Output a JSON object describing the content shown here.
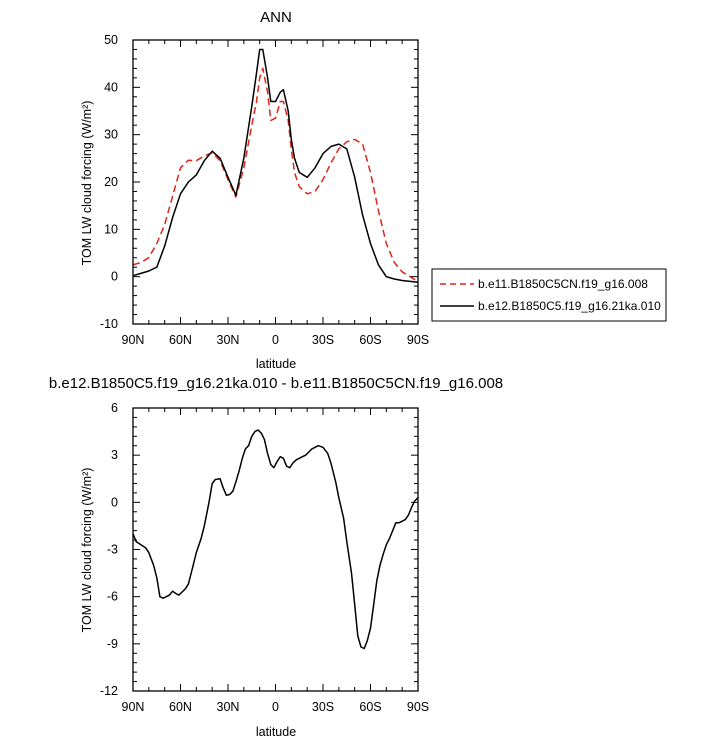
{
  "chart_data": [
    {
      "type": "line",
      "title": "ANN",
      "xlabel": "latitude",
      "ylabel": "TOM LW cloud forcing (W/m²)",
      "xlim": [
        90,
        -90
      ],
      "ylim": [
        -10,
        50
      ],
      "x_ticks": [
        90,
        60,
        30,
        0,
        -30,
        -60,
        -90
      ],
      "x_tick_labels": [
        "90N",
        "60N",
        "30N",
        "0",
        "30S",
        "60S",
        "90S"
      ],
      "y_ticks": [
        -10,
        0,
        10,
        20,
        30,
        40,
        50
      ],
      "y_tick_labels": [
        "-10",
        "0",
        "10",
        "20",
        "30",
        "40",
        "50"
      ],
      "legend_position": "right",
      "series": [
        {
          "name": "b.e11.B1850C5CN.f19_g16.008",
          "color": "#e0241b",
          "dash": "dashed",
          "x": [
            90,
            85,
            80,
            75,
            70,
            65,
            60,
            55,
            50,
            45,
            40,
            35,
            30,
            25,
            20,
            15,
            12,
            10,
            8,
            5,
            3,
            0,
            -3,
            -5,
            -8,
            -10,
            -12,
            -15,
            -20,
            -25,
            -30,
            -35,
            -40,
            -45,
            -50,
            -55,
            -60,
            -65,
            -70,
            -75,
            -80,
            -85,
            -90
          ],
          "y": [
            2.5,
            3,
            4,
            7,
            11,
            17,
            23,
            24.6,
            24.5,
            25.5,
            26.2,
            24.5,
            20.5,
            16.8,
            23,
            32,
            37,
            42,
            44,
            39,
            33,
            33.5,
            37,
            37,
            33,
            27,
            22,
            19,
            17.5,
            18,
            20.5,
            24,
            27,
            28.5,
            29,
            28,
            22,
            14,
            7,
            3,
            1,
            0,
            -1
          ]
        },
        {
          "name": "b.e12.B1850C5.f19_g16.21ka.010",
          "color": "#000000",
          "dash": "solid",
          "x": [
            90,
            85,
            80,
            75,
            70,
            65,
            60,
            55,
            50,
            45,
            40,
            35,
            30,
            25,
            20,
            15,
            12,
            10,
            8,
            5,
            3,
            0,
            -3,
            -5,
            -8,
            -10,
            -12,
            -15,
            -20,
            -25,
            -30,
            -35,
            -40,
            -45,
            -50,
            -55,
            -60,
            -65,
            -70,
            -75,
            -80,
            -85,
            -90
          ],
          "y": [
            0.2,
            0.7,
            1.2,
            2,
            6.5,
            12.5,
            17.5,
            20,
            21.5,
            24.5,
            26.5,
            25,
            21,
            17.2,
            25,
            36,
            43,
            48,
            48,
            42,
            37,
            37,
            39,
            39.5,
            35,
            29,
            25,
            22,
            21,
            23,
            26,
            27.5,
            28,
            27,
            21,
            13,
            7,
            2.5,
            0,
            -0.5,
            -0.8,
            -1,
            -1.2
          ]
        }
      ]
    },
    {
      "type": "line",
      "title": "b.e12.B1850C5.f19_g16.21ka.010 - b.e11.B1850C5CN.f19_g16.008",
      "xlabel": "latitude",
      "ylabel": "TOM LW cloud forcing (W/m²)",
      "xlim": [
        90,
        -90
      ],
      "ylim": [
        -12,
        6
      ],
      "x_ticks": [
        90,
        60,
        30,
        0,
        -30,
        -60,
        -90
      ],
      "x_tick_labels": [
        "90N",
        "60N",
        "30N",
        "0",
        "30S",
        "60S",
        "90S"
      ],
      "y_ticks": [
        -12,
        -9,
        -6,
        -3,
        0,
        3,
        6
      ],
      "y_tick_labels": [
        "-12",
        "-9",
        "-6",
        "-3",
        "0",
        "3",
        "6"
      ],
      "series": [
        {
          "color": "#000000",
          "dash": "solid",
          "x": [
            90,
            88,
            85,
            82,
            80,
            77,
            75,
            73,
            71,
            69,
            67,
            65,
            63,
            61,
            59,
            57,
            55,
            52,
            50,
            47,
            45,
            42,
            40,
            38,
            35,
            33,
            31,
            29,
            27,
            25,
            23,
            21,
            19,
            17,
            15,
            13,
            11,
            9,
            7,
            5,
            3,
            1,
            -1,
            -3,
            -5,
            -7,
            -9,
            -11,
            -13,
            -15,
            -17,
            -19,
            -21,
            -23,
            -25,
            -27,
            -30,
            -33,
            -35,
            -38,
            -40,
            -43,
            -45,
            -48,
            -50,
            -52,
            -54,
            -56,
            -58,
            -60,
            -62,
            -64,
            -66,
            -68,
            -70,
            -72,
            -74,
            -76,
            -78,
            -80,
            -82,
            -84,
            -86,
            -88,
            -90
          ],
          "y": [
            -2,
            -2.5,
            -2.7,
            -2.9,
            -3.2,
            -4,
            -4.8,
            -6,
            -6.1,
            -6,
            -5.9,
            -5.65,
            -5.8,
            -5.9,
            -5.7,
            -5.5,
            -5.2,
            -4,
            -3.2,
            -2.3,
            -1.5,
            0,
            1.2,
            1.45,
            1.5,
            0.9,
            0.45,
            0.5,
            0.7,
            1.3,
            2,
            2.8,
            3.4,
            3.6,
            4.2,
            4.5,
            4.6,
            4.4,
            4.0,
            3.1,
            2.4,
            2.2,
            2.6,
            2.9,
            2.8,
            2.3,
            2.2,
            2.5,
            2.7,
            2.8,
            2.9,
            3.0,
            3.2,
            3.4,
            3.5,
            3.6,
            3.5,
            3.1,
            2.5,
            1.3,
            0.3,
            -1,
            -2.5,
            -4.5,
            -6.5,
            -8.5,
            -9.2,
            -9.3,
            -8.8,
            -8,
            -6.5,
            -5,
            -4,
            -3.3,
            -2.7,
            -2.3,
            -1.8,
            -1.3,
            -1.3,
            -1.2,
            -1.1,
            -0.8,
            -0.3,
            0.1,
            0.3
          ]
        }
      ]
    }
  ]
}
